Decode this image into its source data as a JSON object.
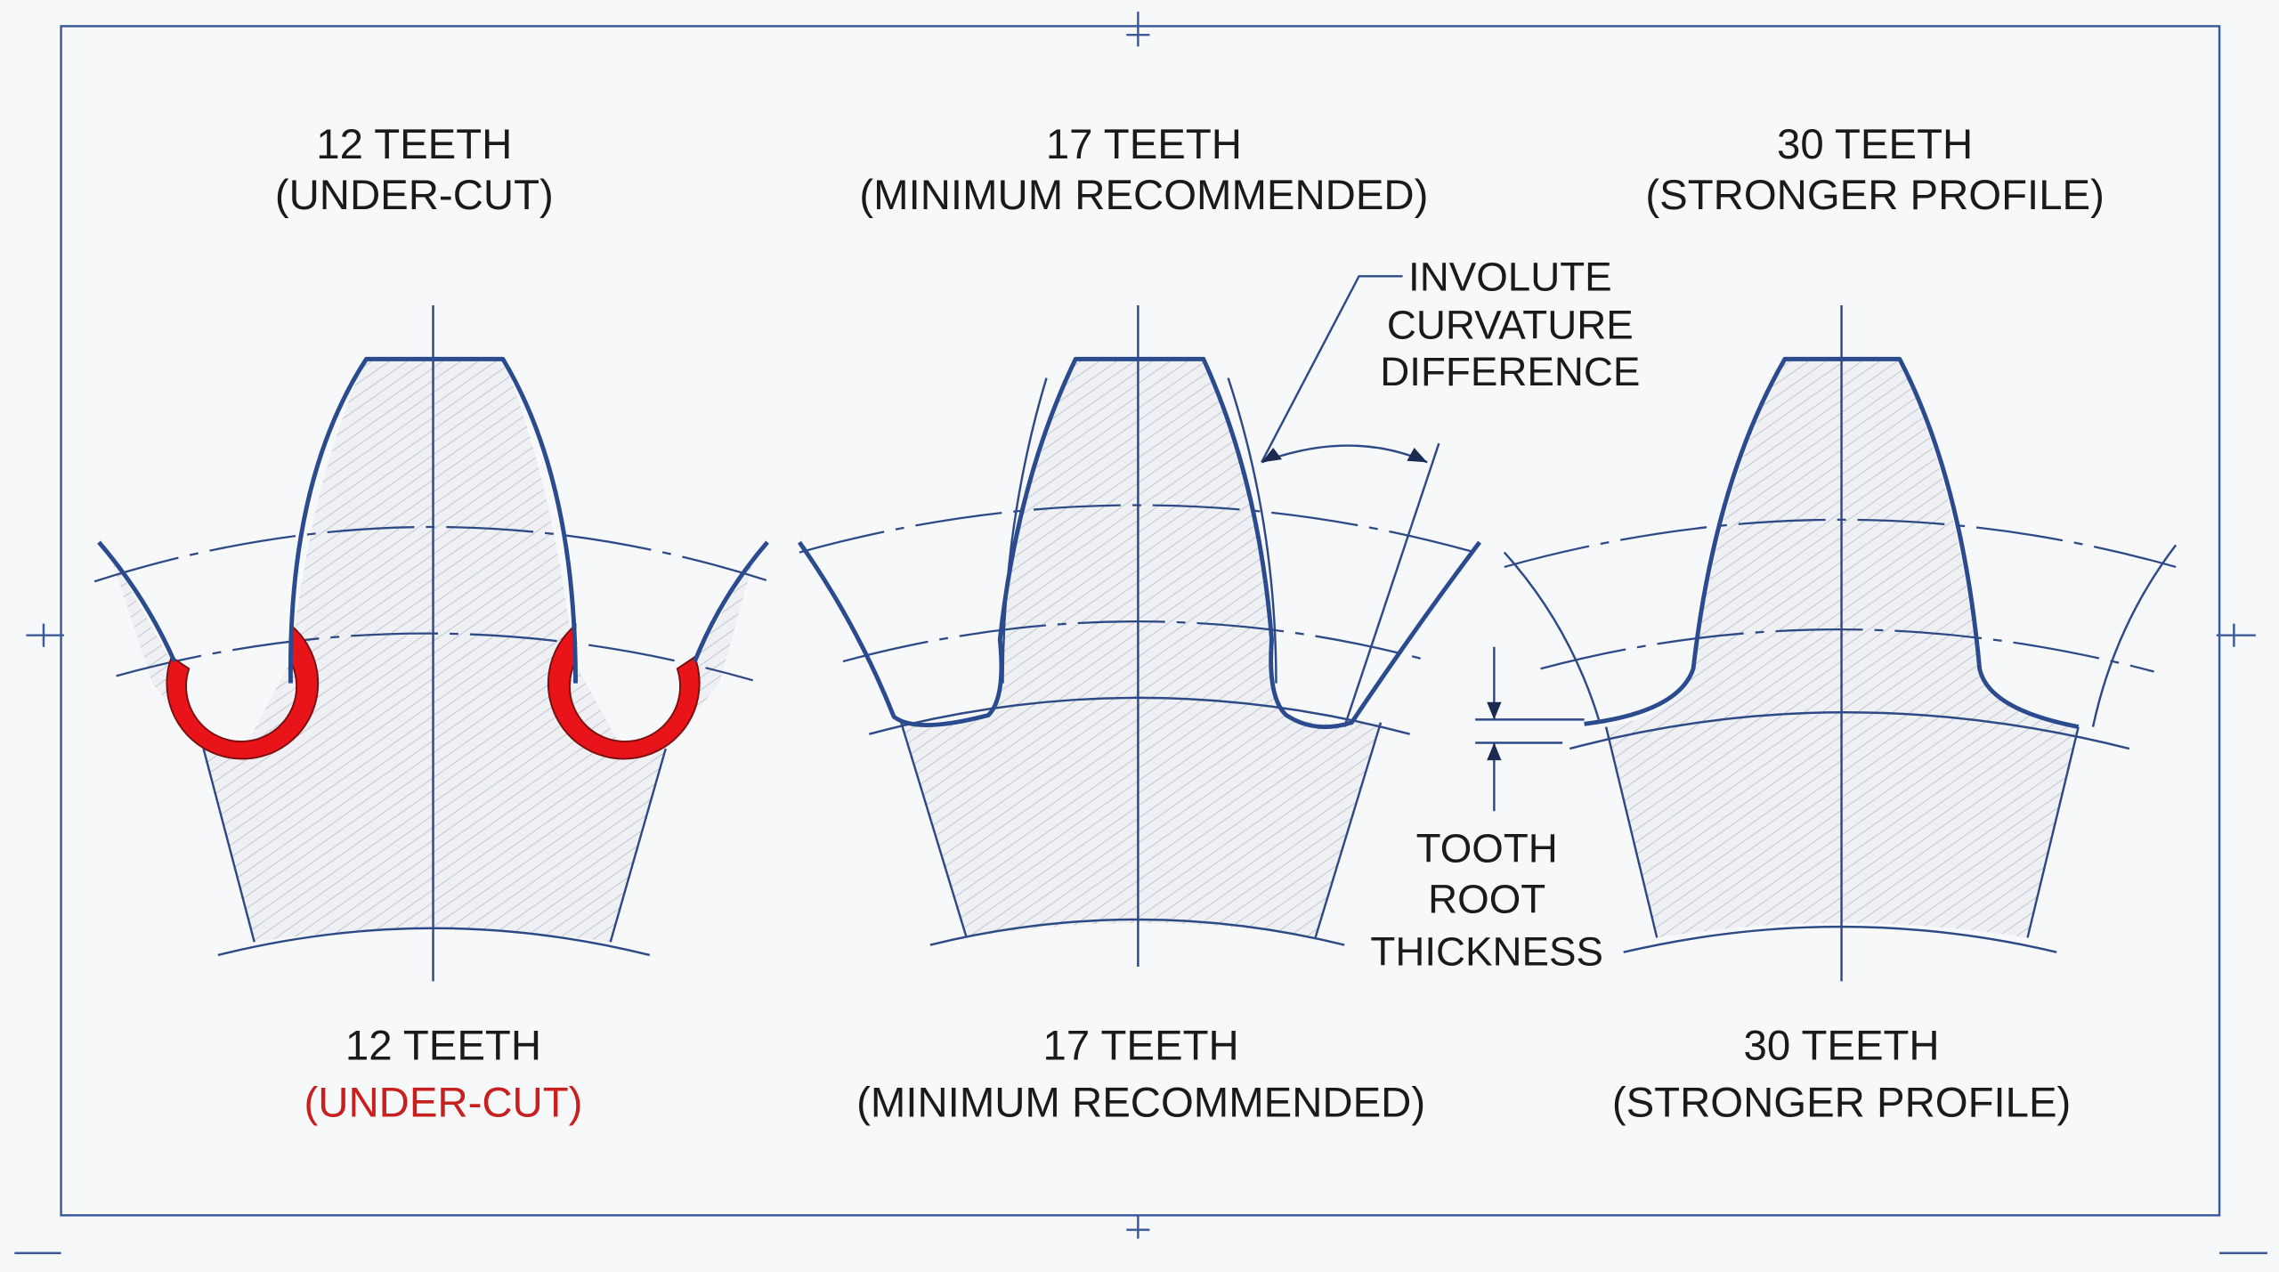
{
  "panels": [
    {
      "top_title": "12 TEETH",
      "top_subtitle": "(UNDER-CUT)",
      "bottom_title": "12 TEETH",
      "bottom_subtitle": "(UNDER-CUT)",
      "bottom_subtitle_color": "#c8201e"
    },
    {
      "top_title": "17 TEETH",
      "top_subtitle": "(MINIMUM RECOMMENDED)",
      "bottom_title": "17 TEETH",
      "bottom_subtitle": "(MINIMUM RECOMMENDED)"
    },
    {
      "top_title": "30 TEETH",
      "top_subtitle": "(STRONGER PROFILE)",
      "bottom_title": "30 TEETH",
      "bottom_subtitle": "(STRONGER PROFILE)"
    }
  ],
  "annotations": {
    "involute": [
      "INVOLUTE",
      "CURVATURE",
      "DIFFERENCE"
    ],
    "root": [
      "TOOTH",
      "ROOT",
      "THICKNESS"
    ]
  },
  "colors": {
    "line": "#2b4b8f",
    "undercut": "#e8141a",
    "text": "#1a1a1a"
  }
}
